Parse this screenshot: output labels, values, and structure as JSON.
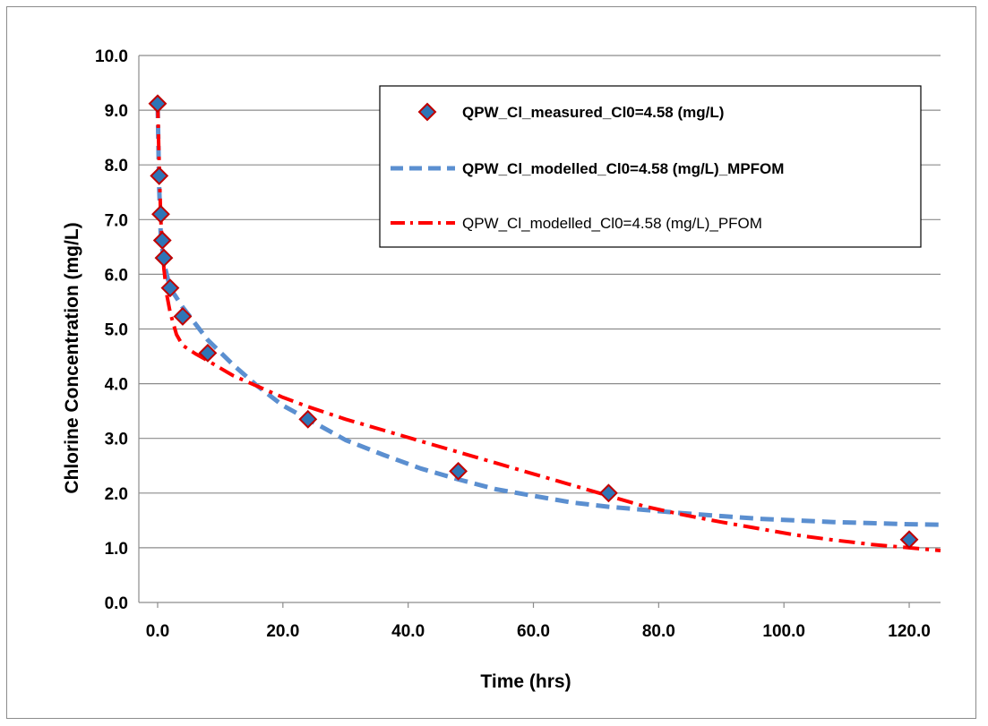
{
  "chart_data": {
    "type": "scatter",
    "title": "",
    "xlabel": "Time (hrs)",
    "ylabel": "Chlorine Concentration (mg/L)",
    "xlim": [
      -3,
      125
    ],
    "ylim": [
      0,
      10
    ],
    "x_ticks": [
      0,
      20,
      40,
      60,
      80,
      100,
      120
    ],
    "x_tick_labels": [
      "0.0",
      "20.0",
      "40.0",
      "60.0",
      "80.0",
      "100.0",
      "120.0"
    ],
    "y_ticks": [
      0,
      1,
      2,
      3,
      4,
      5,
      6,
      7,
      8,
      9,
      10
    ],
    "y_tick_labels": [
      "0.0",
      "1.0",
      "2.0",
      "3.0",
      "4.0",
      "5.0",
      "6.0",
      "7.0",
      "8.0",
      "9.0",
      "10.0"
    ],
    "grid": "horizontal",
    "legend_position": "top-right",
    "series": [
      {
        "name": "QPW_Cl_measured_Cl0=4.58 (mg/L)",
        "style": "markers",
        "marker": "diamond",
        "color": "#2e75b6",
        "edge_color": "#c00000",
        "x": [
          0,
          0.25,
          0.5,
          0.75,
          1,
          2,
          4,
          8,
          24,
          48,
          72,
          120
        ],
        "y": [
          9.12,
          7.8,
          7.1,
          6.62,
          6.3,
          5.75,
          5.23,
          4.56,
          3.35,
          2.4,
          2.0,
          1.15
        ]
      },
      {
        "name": "QPW_Cl_modelled_Cl0=4.58 (mg/L)_MPFOM",
        "style": "dashed",
        "color": "#5b8fd0",
        "x": [
          0,
          0.25,
          0.5,
          1,
          2,
          4,
          8,
          12,
          16,
          20,
          24,
          30,
          36,
          42,
          48,
          54,
          60,
          66,
          72,
          78,
          84,
          90,
          96,
          102,
          108,
          114,
          120,
          125
        ],
        "y": [
          9.1,
          7.6,
          6.7,
          6.2,
          5.75,
          5.4,
          4.8,
          4.35,
          3.95,
          3.6,
          3.35,
          2.97,
          2.7,
          2.45,
          2.25,
          2.07,
          1.95,
          1.83,
          1.75,
          1.69,
          1.63,
          1.58,
          1.53,
          1.5,
          1.47,
          1.45,
          1.43,
          1.42
        ]
      },
      {
        "name": "QPW_Cl_modelled_Cl0=4.58 (mg/L)_PFOM",
        "style": "dash-dot",
        "color": "#ff0000",
        "x": [
          0,
          0.25,
          0.5,
          1,
          1.5,
          2,
          3,
          4,
          6,
          8,
          12,
          16,
          20,
          24,
          30,
          36,
          42,
          48,
          54,
          60,
          66,
          72,
          78,
          84,
          90,
          96,
          102,
          108,
          114,
          120,
          125
        ],
        "y": [
          9.15,
          8.0,
          7.0,
          6.1,
          5.6,
          5.3,
          4.9,
          4.7,
          4.55,
          4.42,
          4.15,
          3.95,
          3.75,
          3.58,
          3.35,
          3.15,
          2.95,
          2.75,
          2.55,
          2.35,
          2.15,
          1.95,
          1.75,
          1.6,
          1.47,
          1.35,
          1.23,
          1.14,
          1.06,
          1.0,
          0.95
        ]
      }
    ]
  }
}
